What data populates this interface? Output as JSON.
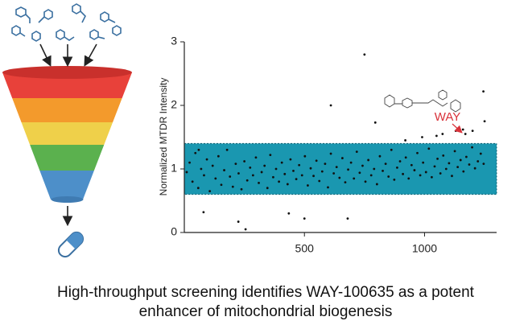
{
  "chart_data": {
    "type": "scatter",
    "y_label": "Normalized MTDR Intensity",
    "annotation": "WAY",
    "caption_line1": "High-throughput screening identifies WAY-100635 as a potent",
    "caption_line2": "enhancer of mitochondrial biogenesis",
    "xlim": [
      0,
      1300
    ],
    "ylim": [
      0,
      3
    ],
    "xticks": [
      500,
      1000
    ],
    "yticks": [
      0,
      1,
      2,
      3
    ],
    "band": {
      "ymin": 0.6,
      "ymax": 1.4,
      "color": "#1a97b0"
    },
    "color": "#111111",
    "x": [
      10,
      22,
      34,
      46,
      58,
      70,
      82,
      94,
      106,
      118,
      130,
      142,
      154,
      166,
      178,
      190,
      202,
      214,
      226,
      238,
      250,
      262,
      274,
      286,
      298,
      310,
      322,
      334,
      346,
      358,
      370,
      382,
      394,
      406,
      418,
      430,
      442,
      454,
      466,
      478,
      490,
      502,
      514,
      526,
      538,
      550,
      562,
      574,
      586,
      598,
      610,
      622,
      634,
      646,
      658,
      670,
      682,
      694,
      706,
      718,
      730,
      742,
      754,
      766,
      778,
      790,
      802,
      814,
      826,
      838,
      850,
      862,
      874,
      886,
      898,
      910,
      922,
      934,
      946,
      958,
      970,
      982,
      994,
      1006,
      1018,
      1030,
      1042,
      1054,
      1066,
      1078,
      1090,
      1102,
      1114,
      1126,
      1138,
      1150,
      1162,
      1174,
      1186,
      1198,
      1210,
      1222,
      1234,
      1246,
      750,
      610,
      1245,
      795,
      255,
      225,
      680,
      435,
      500,
      80,
      1075,
      1130,
      1200,
      1250,
      990,
      1160,
      60,
      1170,
      920,
      1050
    ],
    "values": [
      0.95,
      1.1,
      0.8,
      1.25,
      0.7,
      1.0,
      0.9,
      1.15,
      0.65,
      1.05,
      0.85,
      1.2,
      0.75,
      0.98,
      1.3,
      0.88,
      0.72,
      1.08,
      0.93,
      0.68,
      1.12,
      0.82,
      1.02,
      0.9,
      1.18,
      0.78,
      0.95,
      1.05,
      0.7,
      1.22,
      0.87,
      1.0,
      0.8,
      1.1,
      0.92,
      0.76,
      1.15,
      0.97,
      0.84,
      1.06,
      0.9,
      1.2,
      0.74,
      1.01,
      0.89,
      1.13,
      0.81,
      0.96,
      1.08,
      0.71,
      1.24,
      0.93,
      1.03,
      0.86,
      1.17,
      0.79,
      0.99,
      1.1,
      0.85,
      1.27,
      0.94,
      1.05,
      0.8,
      1.14,
      0.9,
      1.0,
      0.76,
      1.2,
      0.97,
      1.08,
      0.88,
      1.3,
      0.83,
      1.02,
      1.12,
      0.92,
      1.18,
      0.85,
      1.06,
      0.98,
      1.25,
      0.9,
      1.1,
      0.95,
      1.32,
      0.87,
      1.04,
      1.16,
      0.93,
      1.21,
      1.0,
      1.09,
      0.89,
      1.28,
      1.03,
      1.14,
      0.96,
      1.19,
      1.07,
      1.34,
      1.01,
      1.12,
      1.24,
      1.08,
      2.8,
      2.0,
      2.22,
      1.73,
      0.05,
      0.17,
      0.22,
      0.3,
      0.22,
      0.32,
      1.55,
      1.6,
      1.6,
      1.75,
      1.5,
      1.62,
      1.3,
      1.55,
      1.45,
      1.52
    ]
  }
}
